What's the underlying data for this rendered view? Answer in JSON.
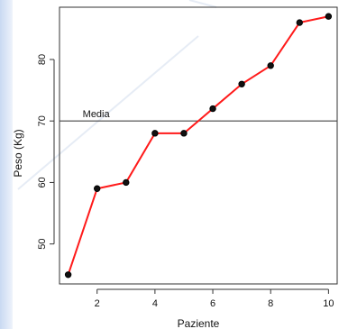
{
  "chart_data": {
    "type": "line",
    "title": "",
    "xlabel": "Paziente",
    "ylabel": "Peso (Kg)",
    "x": [
      1,
      2,
      3,
      4,
      5,
      6,
      7,
      8,
      9,
      10
    ],
    "series": [
      {
        "values": [
          45,
          59,
          60,
          68,
          68,
          72,
          76,
          79,
          86,
          87
        ],
        "color": "#ff1a1a"
      }
    ],
    "xlim": [
      0.7,
      10.3
    ],
    "ylim": [
      43.5,
      88.5
    ],
    "xticks": [
      2,
      4,
      6,
      8,
      10
    ],
    "yticks": [
      50,
      60,
      70,
      80
    ],
    "reference_line": {
      "label": "Media",
      "value": 70
    },
    "marker_color": "#111111",
    "grid": false,
    "legend": "none"
  }
}
